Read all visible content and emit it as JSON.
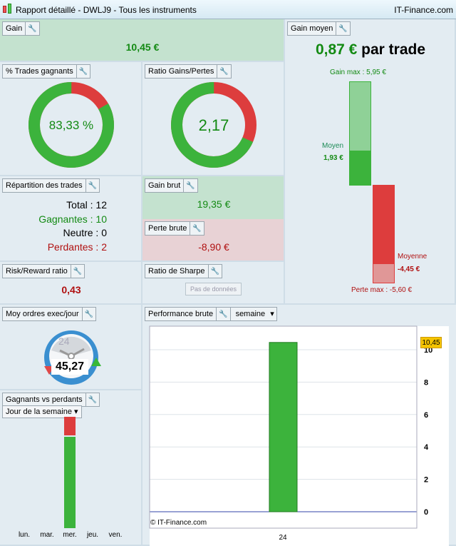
{
  "title": "Rapport détaillé - DWLJ9 - Tous les instruments",
  "brand": "IT-Finance.com",
  "gain": {
    "label": "Gain",
    "value": "10,45 €"
  },
  "gain_moyen": {
    "label": "Gain moyen",
    "value": "0,87 €",
    "suffix": "par trade",
    "gain_max": "Gain max : 5,95 €",
    "moyen_label": "Moyen",
    "moyen_value": "1,93 €",
    "moyenne_label": "Moyenne",
    "moyenne_value": "-4,45 €",
    "perte_max": "Perte max : -5,60 €",
    "gain_max_num": 5.95,
    "moyen_num": 1.93,
    "perte_max_num": -5.6,
    "moyenne_num": -4.45
  },
  "pct_trades": {
    "label": "% Trades gagnants",
    "value": "83,33 %",
    "fraction": 0.8333
  },
  "ratio": {
    "label": "Ratio Gains/Pertes",
    "value": "2,17",
    "fraction": 0.685
  },
  "repartition": {
    "label": "Répartition des trades",
    "total": "Total : 12",
    "gagnantes": "Gagnantes : 10",
    "neutre": "Neutre : 0",
    "perdantes": "Perdantes : 2"
  },
  "gain_brut": {
    "label": "Gain brut",
    "value": "19,35 €"
  },
  "perte_brute": {
    "label": "Perte brute",
    "value": "-8,90 €"
  },
  "risk_reward": {
    "label": "Risk/Reward ratio",
    "value": "0,43"
  },
  "sharpe": {
    "label": "Ratio de Sharpe",
    "button": "Pas de données"
  },
  "moy_ordres": {
    "label": "Moy ordres exec/jour",
    "value": "45,27",
    "clock": "24"
  },
  "gvp": {
    "label": "Gagnants vs perdants",
    "select": "Jour de la semaine",
    "days": [
      "lun.",
      "mar.",
      "mer.",
      "jeu.",
      "ven."
    ],
    "total_label": "12",
    "wins": [
      0,
      0,
      10,
      0,
      0
    ],
    "losses": [
      0,
      0,
      2,
      0,
      0
    ]
  },
  "perf": {
    "label": "Performance brute",
    "select": "semaine",
    "copyright": "© IT-Finance.com"
  },
  "chart_data": {
    "type": "bar",
    "categories": [
      "24"
    ],
    "values": [
      10.45
    ],
    "ylim": [
      0,
      11
    ],
    "yticks": [
      "0",
      "2",
      "4",
      "6",
      "8",
      "10"
    ],
    "tag": "10,45",
    "color": "#3cb33c"
  },
  "colors": {
    "green": "#3cb33c",
    "red": "#dd3d3d"
  }
}
